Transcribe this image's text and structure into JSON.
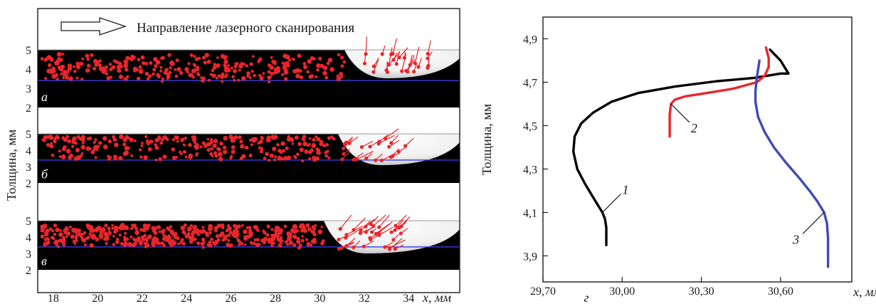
{
  "header": {
    "scan_direction_label": "Направление лазерного сканирования"
  },
  "chart_data": [
    {
      "type": "scatter",
      "panels": [
        "а",
        "б",
        "в"
      ],
      "xlabel": "x, мм",
      "ylabel": "Толщина, мм",
      "x_ticks": [
        "18",
        "20",
        "22",
        "24",
        "26",
        "28",
        "30",
        "32",
        "34"
      ],
      "y_ticks": [
        "2",
        "3",
        "4",
        "5"
      ],
      "xlim": [
        17.3,
        36.3
      ],
      "ylim": [
        2,
        5
      ],
      "colors": {
        "particle": "#e8262b",
        "powder": "#000000",
        "melt_pool": "#f2f2f2",
        "substrate_line": "#3b3be6"
      }
    },
    {
      "type": "line",
      "panel": "г",
      "xlabel": "x, мм",
      "ylabel": "Толщина, мм",
      "x_ticks": [
        "29,70",
        "30,00",
        "30,30",
        "30,60"
      ],
      "y_ticks": [
        "3,9",
        "4,1",
        "4,3",
        "4,5",
        "4,7",
        "4,9"
      ],
      "xlim": [
        29.7,
        30.87
      ],
      "ylim": [
        3.78,
        5.0
      ],
      "series": [
        {
          "name": "1",
          "color": "#000000",
          "x": [
            29.94,
            29.94,
            29.935,
            29.925,
            29.9,
            29.86,
            29.83,
            29.815,
            29.82,
            29.845,
            29.89,
            29.96,
            30.06,
            30.2,
            30.36,
            30.5,
            30.6,
            30.63,
            30.6,
            30.56
          ],
          "y": [
            3.95,
            4.03,
            4.07,
            4.1,
            4.15,
            4.23,
            4.3,
            4.38,
            4.45,
            4.51,
            4.56,
            4.61,
            4.65,
            4.68,
            4.705,
            4.72,
            4.74,
            4.74,
            4.8,
            4.85
          ]
        },
        {
          "name": "2",
          "color": "#e8262b",
          "x": [
            30.18,
            30.18,
            30.185,
            30.2,
            30.24,
            30.32,
            30.42,
            30.51,
            30.54,
            30.555,
            30.555,
            30.545
          ],
          "y": [
            4.45,
            4.55,
            4.6,
            4.62,
            4.635,
            4.65,
            4.67,
            4.7,
            4.73,
            4.77,
            4.81,
            4.86
          ]
        },
        {
          "name": "3",
          "color": "#3e4ab5",
          "x": [
            30.78,
            30.78,
            30.776,
            30.765,
            30.74,
            30.71,
            30.67,
            30.62,
            30.575,
            30.54,
            30.515,
            30.505,
            30.505,
            30.51,
            30.52
          ],
          "y": [
            3.85,
            3.98,
            4.05,
            4.1,
            4.15,
            4.2,
            4.26,
            4.33,
            4.4,
            4.47,
            4.54,
            4.61,
            4.66,
            4.72,
            4.8
          ]
        }
      ]
    }
  ]
}
